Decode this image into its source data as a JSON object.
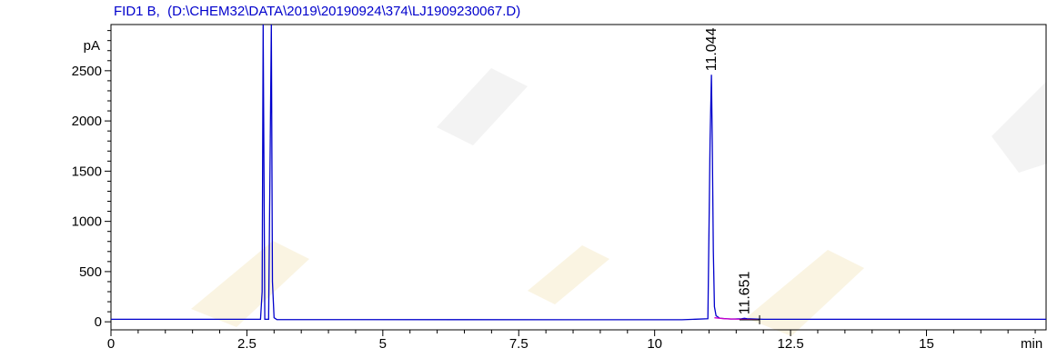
{
  "chart_data": {
    "type": "line",
    "title": "FID1 B,  (D:\\CHEM32\\DATA\\2019\\20190924\\374\\LJ1909230067.D)",
    "ylabel": "pA",
    "xlabel": "min",
    "xlim": [
      0,
      17.2
    ],
    "ylim": [
      -80,
      2960
    ],
    "x_ticks": [
      0,
      2.5,
      5,
      7.5,
      10,
      12.5,
      15
    ],
    "x_tick_labels": [
      "0",
      "2.5",
      "5",
      "7.5",
      "10",
      "12.5",
      "15"
    ],
    "y_ticks": [
      0,
      500,
      1000,
      1500,
      2000,
      2500
    ],
    "y_tick_labels": [
      "0",
      "500",
      "1000",
      "1500",
      "2000",
      "2500"
    ],
    "grid": false,
    "baseline": 20,
    "peaks": [
      {
        "time": 11.044,
        "label": "11.044",
        "height": 2460
      },
      {
        "time": 11.651,
        "label": "11.651",
        "height": 35
      }
    ],
    "series": [
      {
        "color": "#0000cc",
        "x": [
          0,
          2.75,
          2.78,
          2.8,
          2.83,
          2.9,
          2.95,
          2.97,
          3.0,
          3.05,
          10.5,
          10.98,
          11.0,
          11.02,
          11.044,
          11.06,
          11.08,
          11.1,
          11.13,
          11.2,
          11.4,
          11.6,
          11.651,
          11.7,
          12.0,
          17.2
        ],
        "y": [
          25,
          25,
          300,
          2960,
          25,
          25,
          2960,
          400,
          40,
          22,
          20,
          30,
          900,
          1800,
          2460,
          1800,
          700,
          150,
          60,
          35,
          28,
          30,
          35,
          30,
          25,
          25
        ]
      },
      {
        "color": "#cc00cc",
        "x": [
          11.1,
          11.3,
          11.6,
          11.9
        ],
        "y": [
          40,
          30,
          25,
          20
        ]
      }
    ]
  }
}
